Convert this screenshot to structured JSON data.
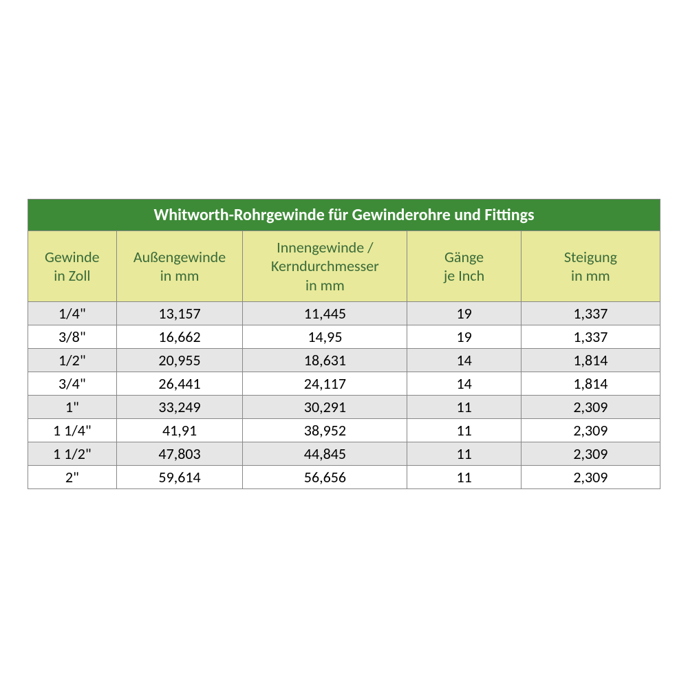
{
  "table": {
    "type": "table",
    "title": "Whitworth-Rohrgewinde für Gewinderohre und Fittings",
    "title_bg": "#3d8b37",
    "title_color": "#ffffff",
    "title_fontsize": 24,
    "title_fontweight": "bold",
    "header_bg": "#e8e99a",
    "header_color": "#3a6b3a",
    "header_fontsize": 22,
    "row_odd_bg": "#e6e6e6",
    "row_even_bg": "#ffffff",
    "cell_fontsize": 22,
    "cell_color": "#000000",
    "border_color": "#888888",
    "columns": [
      {
        "line1": "Gewinde",
        "line2": "in Zoll",
        "width_pct": 14
      },
      {
        "line1": "Außengewinde",
        "line2": "in mm",
        "width_pct": 20
      },
      {
        "line1": "Innengewinde /",
        "line2": "Kerndurchmesser",
        "line3": "in mm",
        "width_pct": 26
      },
      {
        "line1": "Gänge",
        "line2": "je Inch",
        "width_pct": 18
      },
      {
        "line1": "Steigung",
        "line2": "in mm",
        "width_pct": 22
      }
    ],
    "rows": [
      [
        "1/4\"",
        "13,157",
        "11,445",
        "19",
        "1,337"
      ],
      [
        "3/8\"",
        "16,662",
        "14,95",
        "19",
        "1,337"
      ],
      [
        "1/2\"",
        "20,955",
        "18,631",
        "14",
        "1,814"
      ],
      [
        "3/4\"",
        "26,441",
        "24,117",
        "14",
        "1,814"
      ],
      [
        "1\"",
        "33,249",
        "30,291",
        "11",
        "2,309"
      ],
      [
        "1 1/4\"",
        "41,91",
        "38,952",
        "11",
        "2,309"
      ],
      [
        "1 1/2\"",
        "47,803",
        "44,845",
        "11",
        "2,309"
      ],
      [
        "2\"",
        "59,614",
        "56,656",
        "11",
        "2,309"
      ]
    ]
  }
}
